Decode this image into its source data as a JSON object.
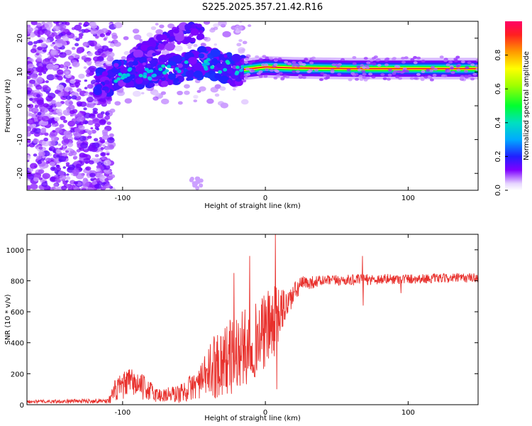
{
  "title": "S225.2025.357.21.42.R16",
  "chart_data": [
    {
      "type": "heatmap",
      "name": "spectrogram",
      "xlabel": "Height of straight line (km)",
      "ylabel": "Frequency (Hz)",
      "xlim": [
        -167,
        149
      ],
      "ylim": [
        -25,
        25
      ],
      "xticks": [
        -100,
        0,
        100
      ],
      "yticks": [
        -20,
        -10,
        0,
        10,
        20
      ],
      "colorbar": {
        "label": "Normalized spectral amplitude",
        "range": [
          0,
          1
        ],
        "ticks": [
          0.0,
          0.2,
          0.4,
          0.6,
          0.8
        ]
      },
      "ridge": [
        {
          "x": -115,
          "f": 7
        },
        {
          "x": -100,
          "f": 9.5
        },
        {
          "x": -80,
          "f": 10
        },
        {
          "x": -60,
          "f": 11
        },
        {
          "x": -40,
          "f": 13
        },
        {
          "x": -20,
          "f": 10.5
        },
        {
          "x": 0,
          "f": 11.5
        },
        {
          "x": 20,
          "f": 11.2
        },
        {
          "x": 60,
          "f": 11
        },
        {
          "x": 100,
          "f": 11
        },
        {
          "x": 149,
          "f": 11
        }
      ],
      "upper_branch": [
        {
          "x": -95,
          "f": 14
        },
        {
          "x": -80,
          "f": 17
        },
        {
          "x": -60,
          "f": 21
        },
        {
          "x": -45,
          "f": 22
        }
      ]
    },
    {
      "type": "line",
      "name": "snr",
      "xlabel": "Height of straight line (km)",
      "ylabel": "SNR (10 * v/v)",
      "xlim": [
        -167,
        149
      ],
      "ylim": [
        0,
        1100
      ],
      "xticks": [
        -100,
        0,
        100
      ],
      "yticks": [
        0,
        200,
        400,
        600,
        800,
        1000
      ],
      "color": "#e8302c",
      "envelope": [
        {
          "x": -167,
          "mean": 20,
          "noise": 10
        },
        {
          "x": -110,
          "mean": 25,
          "noise": 15
        },
        {
          "x": -105,
          "mean": 90,
          "noise": 80
        },
        {
          "x": -95,
          "mean": 150,
          "noise": 90
        },
        {
          "x": -85,
          "mean": 110,
          "noise": 80
        },
        {
          "x": -75,
          "mean": 60,
          "noise": 50
        },
        {
          "x": -60,
          "mean": 70,
          "noise": 60
        },
        {
          "x": -45,
          "mean": 150,
          "noise": 110
        },
        {
          "x": -35,
          "mean": 260,
          "noise": 220
        },
        {
          "x": -20,
          "mean": 330,
          "noise": 260
        },
        {
          "x": -5,
          "mean": 430,
          "noise": 240
        },
        {
          "x": 5,
          "mean": 520,
          "noise": 250
        },
        {
          "x": 15,
          "mean": 650,
          "noise": 100
        },
        {
          "x": 25,
          "mean": 780,
          "noise": 50
        },
        {
          "x": 40,
          "mean": 800,
          "noise": 35
        },
        {
          "x": 80,
          "mean": 810,
          "noise": 35
        },
        {
          "x": 120,
          "mean": 815,
          "noise": 30
        },
        {
          "x": 149,
          "mean": 820,
          "noise": 30
        }
      ],
      "spikes": [
        {
          "x": -22,
          "y": 850
        },
        {
          "x": -11,
          "y": 960
        },
        {
          "x": 7,
          "y": 1100
        },
        {
          "x": 8,
          "y": 100
        },
        {
          "x": 68,
          "y": 960
        },
        {
          "x": 68.5,
          "y": 640
        },
        {
          "x": 95,
          "y": 720
        }
      ]
    }
  ]
}
